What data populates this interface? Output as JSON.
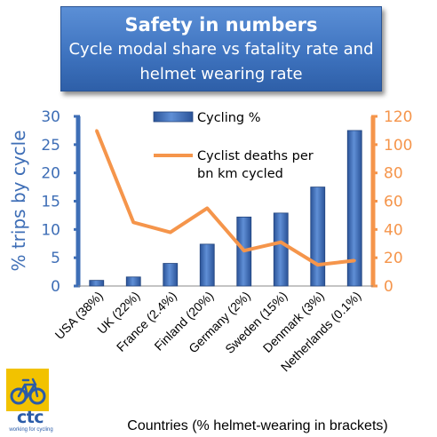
{
  "title_box": {
    "line1": "Safety in numbers",
    "line2": "Cycle modal share vs fatality rate and",
    "line3": "helmet wearing rate"
  },
  "logo": {
    "name": "ctc",
    "tagline": "working for cycling",
    "icon": "bicycle-icon"
  },
  "colors": {
    "bar": "#3a68b4",
    "line": "#f5954b",
    "left_axis": "#3e6eb6",
    "right_axis": "#f5954b",
    "title_bg": "#3f74c0"
  },
  "chart_data": {
    "type": "bar",
    "categories": [
      "USA (38%)",
      "UK (22%)",
      "France (2.4%)",
      "Finland (20%)",
      "Germany (2%)",
      "Sweden (15%)",
      "Denmark (3%)",
      "Netherlands (0.1%)"
    ],
    "series": [
      {
        "name": "Cycling %",
        "type": "bar",
        "axis": "left",
        "values": [
          1,
          1.6,
          4,
          7.4,
          12.2,
          12.9,
          17.5,
          27.5
        ]
      },
      {
        "name": "Cyclist deaths per bn km cycled",
        "legend_lines": [
          "Cyclist deaths per",
          "bn km cycled"
        ],
        "type": "line",
        "axis": "right",
        "values": [
          110,
          45,
          38,
          55,
          25,
          31,
          15,
          18
        ]
      }
    ],
    "xlabel": "Countries (% helmet-wearing in brackets)",
    "ylabel": "% trips by cycle",
    "ylim": [
      0,
      30
    ],
    "yticks": [
      0,
      5,
      10,
      15,
      20,
      25,
      30
    ],
    "y2lim": [
      0,
      120
    ],
    "y2ticks": [
      0,
      20,
      40,
      60,
      80,
      100,
      120
    ],
    "legend_position": "top-center",
    "grid": false
  }
}
